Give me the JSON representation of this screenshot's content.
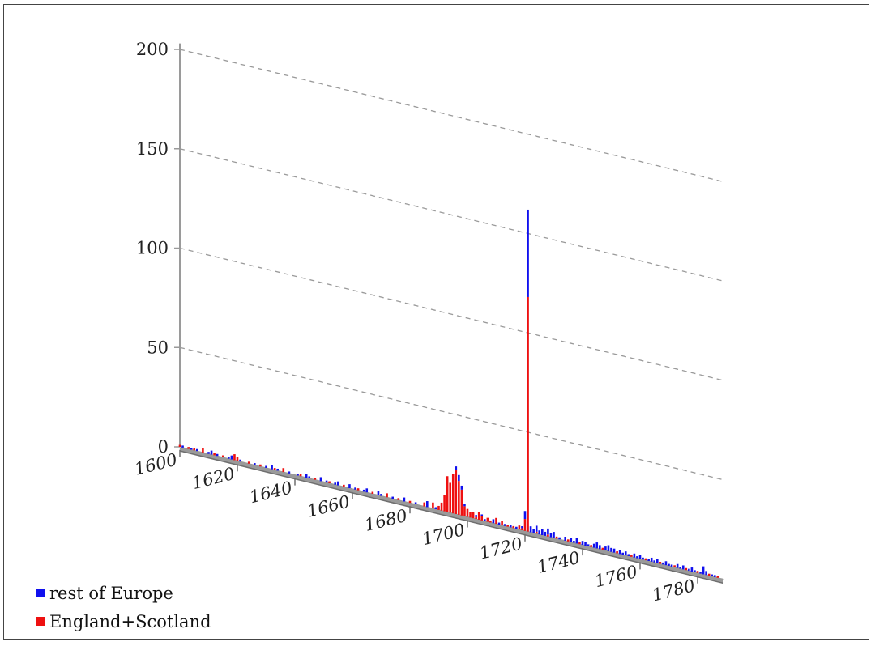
{
  "colors": {
    "rest_of_europe": "#1010ee",
    "england_scotland": "#ee1010",
    "grid": "#9a9a9a",
    "axis": "#9a9a9a"
  },
  "chart_data": {
    "type": "bar",
    "stacked": true,
    "perspective": "3d-oblique",
    "title": "",
    "xlabel": "",
    "ylabel": "",
    "xlim": [
      1600,
      1789
    ],
    "ylim": [
      0,
      200
    ],
    "y_ticks": [
      "0",
      "50",
      "100",
      "150",
      "200"
    ],
    "x_ticks": [
      "1600",
      "1620",
      "1640",
      "1660",
      "1680",
      "1700",
      "1720",
      "1740",
      "1760",
      "1780"
    ],
    "grid": "dashed horizontal",
    "legend_position": "bottom-left",
    "legend": [
      {
        "key": "rest",
        "label": "rest of Europe",
        "color": "#1010ee"
      },
      {
        "key": "eng",
        "label": "England+Scotland",
        "color": "#ee1010"
      }
    ],
    "series": [
      {
        "name": "England+Scotland",
        "key": "eng",
        "points": [
          [
            1600,
            1
          ],
          [
            1603,
            1
          ],
          [
            1605,
            1
          ],
          [
            1608,
            2
          ],
          [
            1612,
            1
          ],
          [
            1615,
            1
          ],
          [
            1619,
            3
          ],
          [
            1620,
            2
          ],
          [
            1624,
            1
          ],
          [
            1628,
            1
          ],
          [
            1633,
            1
          ],
          [
            1636,
            2
          ],
          [
            1642,
            1
          ],
          [
            1647,
            1
          ],
          [
            1652,
            1
          ],
          [
            1657,
            1
          ],
          [
            1662,
            1
          ],
          [
            1667,
            1
          ],
          [
            1672,
            2
          ],
          [
            1676,
            1
          ],
          [
            1680,
            1
          ],
          [
            1685,
            2
          ],
          [
            1688,
            3
          ],
          [
            1690,
            2
          ],
          [
            1691,
            4
          ],
          [
            1692,
            8
          ],
          [
            1693,
            18
          ],
          [
            1694,
            15
          ],
          [
            1695,
            20
          ],
          [
            1696,
            22
          ],
          [
            1697,
            17
          ],
          [
            1698,
            13
          ],
          [
            1699,
            5
          ],
          [
            1700,
            4
          ],
          [
            1701,
            3
          ],
          [
            1702,
            3
          ],
          [
            1703,
            1
          ],
          [
            1704,
            4
          ],
          [
            1705,
            2
          ],
          [
            1707,
            2
          ],
          [
            1708,
            1
          ],
          [
            1710,
            3
          ],
          [
            1712,
            2
          ],
          [
            1714,
            1
          ],
          [
            1716,
            1
          ],
          [
            1718,
            2
          ],
          [
            1719,
            1
          ],
          [
            1720,
            6
          ],
          [
            1721,
            118
          ],
          [
            1724,
            1
          ],
          [
            1728,
            1
          ],
          [
            1731,
            1
          ],
          [
            1735,
            1
          ],
          [
            1739,
            1
          ],
          [
            1743,
            1
          ],
          [
            1747,
            1
          ],
          [
            1752,
            1
          ],
          [
            1757,
            1
          ],
          [
            1762,
            1
          ],
          [
            1767,
            1
          ],
          [
            1772,
            1
          ],
          [
            1776,
            1
          ],
          [
            1780,
            1
          ],
          [
            1784,
            1
          ],
          [
            1787,
            1
          ]
        ]
      },
      {
        "name": "rest of Europe",
        "key": "rest",
        "points": [
          [
            1601,
            1
          ],
          [
            1604,
            1
          ],
          [
            1606,
            1
          ],
          [
            1610,
            1
          ],
          [
            1611,
            2
          ],
          [
            1613,
            1
          ],
          [
            1617,
            1
          ],
          [
            1618,
            2
          ],
          [
            1621,
            1
          ],
          [
            1626,
            1
          ],
          [
            1630,
            1
          ],
          [
            1632,
            2
          ],
          [
            1634,
            1
          ],
          [
            1638,
            1
          ],
          [
            1641,
            1
          ],
          [
            1644,
            2
          ],
          [
            1645,
            1
          ],
          [
            1649,
            2
          ],
          [
            1651,
            1
          ],
          [
            1654,
            1
          ],
          [
            1655,
            2
          ],
          [
            1659,
            2
          ],
          [
            1661,
            1
          ],
          [
            1664,
            1
          ],
          [
            1665,
            2
          ],
          [
            1669,
            2
          ],
          [
            1670,
            1
          ],
          [
            1674,
            1
          ],
          [
            1678,
            2
          ],
          [
            1682,
            1
          ],
          [
            1686,
            3
          ],
          [
            1689,
            1
          ],
          [
            1696,
            2
          ],
          [
            1697,
            3
          ],
          [
            1698,
            2
          ],
          [
            1699,
            1
          ],
          [
            1703,
            1
          ],
          [
            1705,
            1
          ],
          [
            1706,
            1
          ],
          [
            1709,
            2
          ],
          [
            1711,
            1
          ],
          [
            1713,
            1
          ],
          [
            1715,
            1
          ],
          [
            1717,
            1
          ],
          [
            1719,
            1
          ],
          [
            1720,
            4
          ],
          [
            1721,
            44
          ],
          [
            1722,
            3
          ],
          [
            1723,
            2
          ],
          [
            1724,
            3
          ],
          [
            1725,
            2
          ],
          [
            1726,
            3
          ],
          [
            1727,
            2
          ],
          [
            1728,
            3
          ],
          [
            1729,
            2
          ],
          [
            1730,
            3
          ],
          [
            1732,
            1
          ],
          [
            1734,
            2
          ],
          [
            1736,
            2
          ],
          [
            1737,
            1
          ],
          [
            1738,
            3
          ],
          [
            1740,
            2
          ],
          [
            1741,
            2
          ],
          [
            1742,
            1
          ],
          [
            1744,
            2
          ],
          [
            1745,
            3
          ],
          [
            1746,
            2
          ],
          [
            1748,
            2
          ],
          [
            1749,
            3
          ],
          [
            1750,
            2
          ],
          [
            1751,
            2
          ],
          [
            1753,
            2
          ],
          [
            1754,
            1
          ],
          [
            1755,
            2
          ],
          [
            1756,
            1
          ],
          [
            1758,
            2
          ],
          [
            1759,
            1
          ],
          [
            1760,
            2
          ],
          [
            1761,
            1
          ],
          [
            1763,
            1
          ],
          [
            1764,
            2
          ],
          [
            1765,
            1
          ],
          [
            1766,
            2
          ],
          [
            1768,
            1
          ],
          [
            1769,
            2
          ],
          [
            1770,
            1
          ],
          [
            1771,
            1
          ],
          [
            1773,
            2
          ],
          [
            1774,
            1
          ],
          [
            1775,
            2
          ],
          [
            1777,
            1
          ],
          [
            1778,
            2
          ],
          [
            1779,
            1
          ],
          [
            1781,
            1
          ],
          [
            1782,
            4
          ],
          [
            1783,
            2
          ],
          [
            1785,
            1
          ],
          [
            1786,
            1
          ]
        ]
      }
    ]
  }
}
